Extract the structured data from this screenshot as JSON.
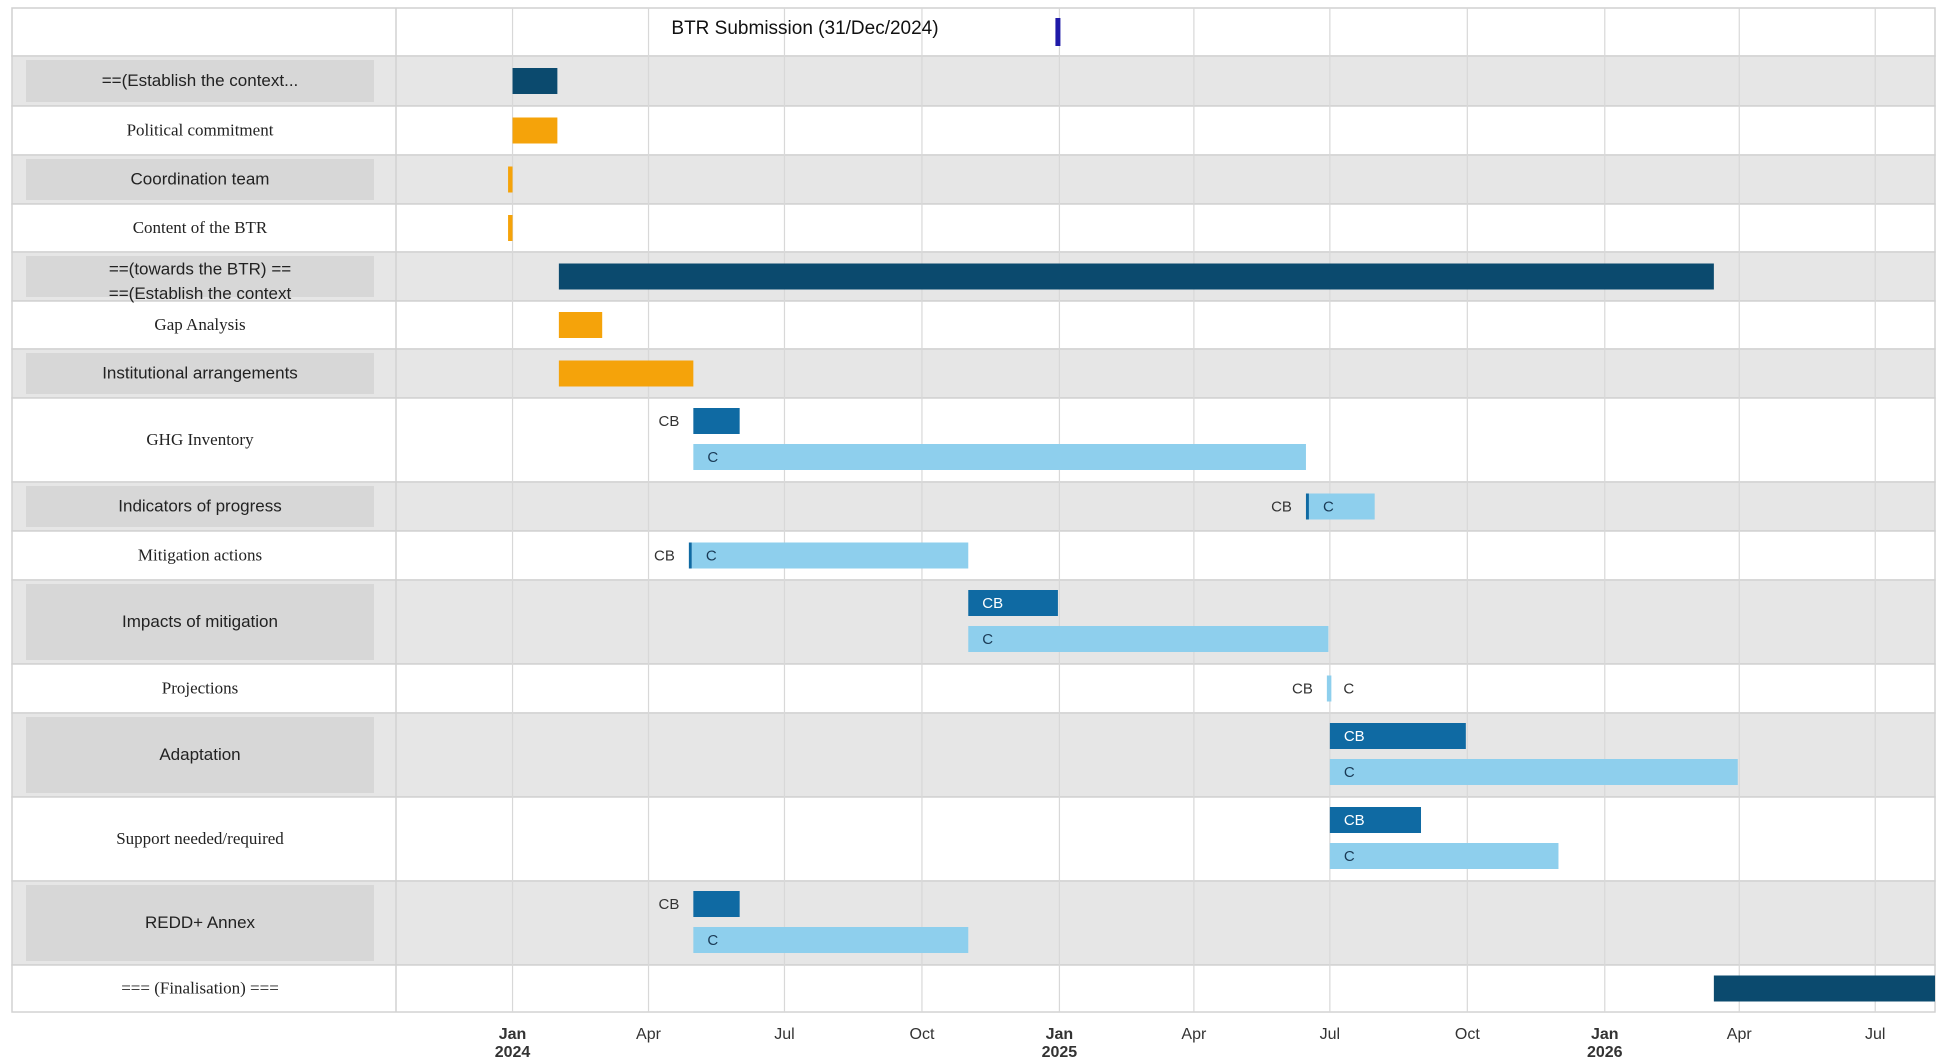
{
  "chart_data": {
    "type": "gantt",
    "title": "BTR Submission (31/Dec/2024)",
    "milestone": {
      "date": "2024-12-31",
      "color": "#1f1aa8"
    },
    "x_axis": {
      "range": [
        "2023-10-15",
        "2026-08-10"
      ],
      "ticks": [
        {
          "date": "2024-01-01",
          "month": "Jan",
          "year": "2024"
        },
        {
          "date": "2024-04-01",
          "month": "Apr",
          "year": ""
        },
        {
          "date": "2024-07-01",
          "month": "Jul",
          "year": ""
        },
        {
          "date": "2024-10-01",
          "month": "Oct",
          "year": ""
        },
        {
          "date": "2025-01-01",
          "month": "Jan",
          "year": "2025"
        },
        {
          "date": "2025-04-01",
          "month": "Apr",
          "year": ""
        },
        {
          "date": "2025-07-01",
          "month": "Jul",
          "year": ""
        },
        {
          "date": "2025-10-01",
          "month": "Oct",
          "year": ""
        },
        {
          "date": "2026-01-01",
          "month": "Jan",
          "year": "2026"
        },
        {
          "date": "2026-04-01",
          "month": "Apr",
          "year": ""
        },
        {
          "date": "2026-07-01",
          "month": "Jul",
          "year": ""
        }
      ],
      "grid": true
    },
    "colors": {
      "section": "#0b4a6e",
      "task": "#f5a30a",
      "CB": "#0f6aa3",
      "C": "#8ecfed",
      "row_shaded": "#e6e6e6",
      "row_plain": "#ffffff",
      "label_box": "#d7d7d7"
    },
    "rows": [
      {
        "label": "==(Establish the context...",
        "font": "sans",
        "shaded": true,
        "labelbox": true,
        "bars": [
          {
            "kind": "section",
            "start": "2024-01-01",
            "end": "2024-01-31",
            "label": ""
          }
        ]
      },
      {
        "label": "Political commitment",
        "font": "serif",
        "shaded": false,
        "labelbox": false,
        "bars": [
          {
            "kind": "task",
            "start": "2024-01-01",
            "end": "2024-01-31",
            "label": ""
          }
        ]
      },
      {
        "label": "Coordination team",
        "font": "sans",
        "shaded": true,
        "labelbox": true,
        "bars": [
          {
            "kind": "task",
            "start": "2023-12-29",
            "end": "2024-01-01",
            "label": ""
          }
        ]
      },
      {
        "label": "Content of the BTR",
        "font": "serif",
        "shaded": false,
        "labelbox": false,
        "bars": [
          {
            "kind": "task",
            "start": "2023-12-29",
            "end": "2024-01-01",
            "label": ""
          }
        ]
      },
      {
        "label": "==(towards the BTR) ==",
        "font": "sans",
        "shaded": true,
        "labelbox": true,
        "sublabel": "==(Establish the context",
        "bars": [
          {
            "kind": "section",
            "start": "2024-02-01",
            "end": "2026-03-15",
            "label": ""
          }
        ]
      },
      {
        "label": "Gap Analysis",
        "font": "serif",
        "shaded": false,
        "labelbox": false,
        "bars": [
          {
            "kind": "task",
            "start": "2024-02-01",
            "end": "2024-03-01",
            "label": ""
          }
        ]
      },
      {
        "label": "Institutional arrangements",
        "font": "sans",
        "shaded": true,
        "labelbox": true,
        "bars": [
          {
            "kind": "task",
            "start": "2024-02-01",
            "end": "2024-05-01",
            "label": ""
          }
        ]
      },
      {
        "label": "GHG Inventory",
        "font": "serif",
        "shaded": false,
        "labelbox": false,
        "bars": [
          {
            "kind": "CB",
            "start": "2024-05-01",
            "end": "2024-06-01",
            "label": "CB",
            "label_pos": "outside"
          },
          {
            "kind": "C",
            "start": "2024-05-01",
            "end": "2025-06-15",
            "label": "C",
            "label_pos": "inside"
          }
        ]
      },
      {
        "label": "Indicators of progress",
        "font": "sans",
        "shaded": true,
        "labelbox": true,
        "bars": [
          {
            "kind": "CB",
            "start": "2025-06-15",
            "end": "2025-06-17",
            "label": "CB",
            "label_pos": "outside",
            "inline_with_next": true
          },
          {
            "kind": "C",
            "start": "2025-06-17",
            "end": "2025-07-31",
            "label": "C",
            "label_pos": "inside",
            "same_line": true
          }
        ]
      },
      {
        "label": "Mitigation actions",
        "font": "serif",
        "shaded": false,
        "labelbox": false,
        "bars": [
          {
            "kind": "CB",
            "start": "2024-04-28",
            "end": "2024-04-30",
            "label": "CB",
            "label_pos": "outside",
            "inline_with_next": true
          },
          {
            "kind": "C",
            "start": "2024-04-30",
            "end": "2024-11-01",
            "label": "C",
            "label_pos": "inside",
            "same_line": true
          }
        ]
      },
      {
        "label": "Impacts of mitigation",
        "font": "sans",
        "shaded": true,
        "labelbox": true,
        "bars": [
          {
            "kind": "CB",
            "start": "2024-11-01",
            "end": "2024-12-31",
            "label": "CB",
            "label_pos": "inside"
          },
          {
            "kind": "C",
            "start": "2024-11-01",
            "end": "2025-06-30",
            "label": "C",
            "label_pos": "inside"
          }
        ]
      },
      {
        "label": "Projections",
        "font": "serif",
        "shaded": false,
        "labelbox": false,
        "bars": [
          {
            "kind": "C",
            "start": "2025-06-29",
            "end": "2025-07-02",
            "label": "CB",
            "label_pos": "outside",
            "after_label": "C",
            "single_line": true
          }
        ]
      },
      {
        "label": "Adaptation",
        "font": "sans",
        "shaded": true,
        "labelbox": true,
        "bars": [
          {
            "kind": "CB",
            "start": "2025-07-01",
            "end": "2025-09-30",
            "label": "CB",
            "label_pos": "inside"
          },
          {
            "kind": "C",
            "start": "2025-07-01",
            "end": "2026-03-31",
            "label": "C",
            "label_pos": "inside"
          }
        ]
      },
      {
        "label": "Support needed/required",
        "font": "serif",
        "shaded": false,
        "labelbox": false,
        "bars": [
          {
            "kind": "CB",
            "start": "2025-07-01",
            "end": "2025-08-31",
            "label": "CB",
            "label_pos": "inside"
          },
          {
            "kind": "C",
            "start": "2025-07-01",
            "end": "2025-12-01",
            "label": "C",
            "label_pos": "inside"
          }
        ]
      },
      {
        "label": "REDD+ Annex",
        "font": "sans",
        "shaded": true,
        "labelbox": true,
        "bars": [
          {
            "kind": "CB",
            "start": "2024-05-01",
            "end": "2024-06-01",
            "label": "CB",
            "label_pos": "outside"
          },
          {
            "kind": "C",
            "start": "2024-05-01",
            "end": "2024-11-01",
            "label": "C",
            "label_pos": "inside"
          }
        ]
      },
      {
        "label": "=== (Finalisation) ===",
        "font": "serif",
        "shaded": false,
        "labelbox": false,
        "bars": [
          {
            "kind": "section",
            "start": "2026-03-15",
            "end": "2026-08-10",
            "label": ""
          }
        ]
      }
    ]
  }
}
